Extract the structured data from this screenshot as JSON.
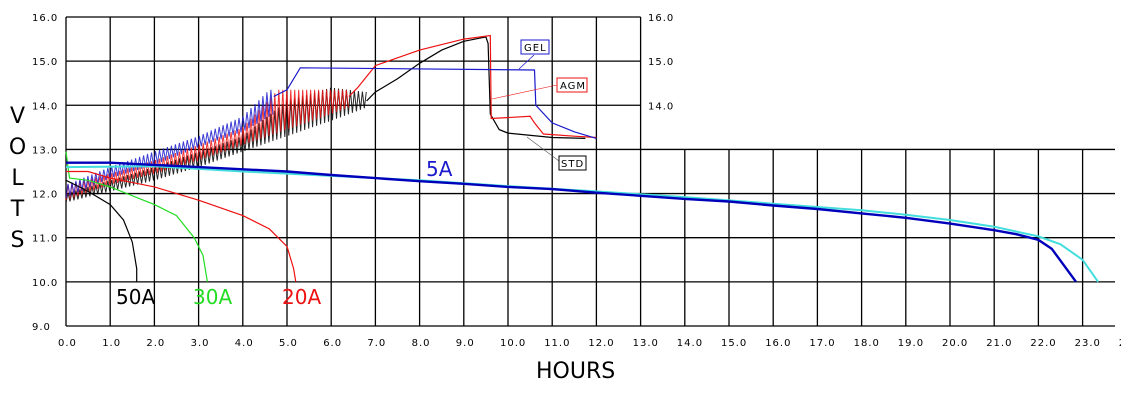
{
  "chart_data": {
    "type": "line",
    "xlabel": "HOURS",
    "ylabel": "VOLTS",
    "xlim": [
      0,
      24
    ],
    "ylim": [
      9,
      16
    ],
    "grid": true,
    "x_ticks": [
      "0.0",
      "1.0",
      "2.0",
      "3.0",
      "4.0",
      "5.0",
      "6.0",
      "7.0",
      "8.0",
      "9.0",
      "10.0",
      "11.0",
      "12.0",
      "13.0",
      "14.0",
      "15.0",
      "16.0",
      "17.0",
      "18.0",
      "19.0",
      "20.0",
      "21.0",
      "22.0",
      "23.0",
      "2"
    ],
    "y_ticks": [
      "16.0",
      "15.0",
      "14.0",
      "13.0",
      "12.0",
      "11.0",
      "10.0",
      "9.0"
    ],
    "y_ticks_right": [
      "16.0",
      "15.0",
      "14.0"
    ],
    "colors": {
      "black": "#000000",
      "green": "#22dd22",
      "red": "#ee1111",
      "blue": "#1a1acc",
      "cyan": "#44dddd",
      "navy": "#0000bb"
    },
    "discharge_series": [
      {
        "label": "50A",
        "color": "#000000",
        "points": [
          [
            0,
            12.3
          ],
          [
            0.3,
            12.15
          ],
          [
            0.5,
            12.05
          ],
          [
            1.0,
            11.75
          ],
          [
            1.3,
            11.4
          ],
          [
            1.5,
            10.9
          ],
          [
            1.6,
            10.3
          ],
          [
            1.6,
            10.0
          ]
        ]
      },
      {
        "label": "30A",
        "color": "#22dd22",
        "points": [
          [
            0,
            12.95
          ],
          [
            0.08,
            12.35
          ],
          [
            0.5,
            12.3
          ],
          [
            1,
            12.15
          ],
          [
            2,
            11.75
          ],
          [
            2.5,
            11.5
          ],
          [
            2.9,
            11.0
          ],
          [
            3.1,
            10.6
          ],
          [
            3.2,
            10.0
          ]
        ]
      },
      {
        "label": "20A",
        "color": "#ee1111",
        "points": [
          [
            0,
            12.5
          ],
          [
            0.5,
            12.5
          ],
          [
            1,
            12.35
          ],
          [
            2,
            12.15
          ],
          [
            3,
            11.85
          ],
          [
            4,
            11.5
          ],
          [
            4.6,
            11.2
          ],
          [
            5,
            10.8
          ],
          [
            5.15,
            10.3
          ],
          [
            5.2,
            10.0
          ]
        ]
      },
      {
        "label": "",
        "color": "#44dddd",
        "points": [
          [
            0,
            12.6
          ],
          [
            2,
            12.62
          ],
          [
            4,
            12.5
          ],
          [
            6,
            12.4
          ],
          [
            8,
            12.3
          ],
          [
            10,
            12.17
          ],
          [
            12,
            12.05
          ],
          [
            14,
            11.92
          ],
          [
            16,
            11.77
          ],
          [
            18,
            11.62
          ],
          [
            19,
            11.52
          ],
          [
            20,
            11.4
          ],
          [
            21,
            11.25
          ],
          [
            22,
            11.03
          ],
          [
            22.5,
            10.85
          ],
          [
            23,
            10.5
          ],
          [
            23.35,
            10.0
          ]
        ]
      },
      {
        "label": "5A",
        "color": "#0000bb",
        "points": [
          [
            0,
            12.7
          ],
          [
            1,
            12.7
          ],
          [
            2,
            12.65
          ],
          [
            3,
            12.6
          ],
          [
            4,
            12.55
          ],
          [
            5,
            12.5
          ],
          [
            6,
            12.42
          ],
          [
            7,
            12.35
          ],
          [
            8,
            12.28
          ],
          [
            9,
            12.22
          ],
          [
            10,
            12.15
          ],
          [
            11,
            12.1
          ],
          [
            12,
            12.02
          ],
          [
            13,
            11.95
          ],
          [
            14,
            11.88
          ],
          [
            15,
            11.82
          ],
          [
            16,
            11.73
          ],
          [
            17,
            11.65
          ],
          [
            18,
            11.55
          ],
          [
            19,
            11.45
          ],
          [
            20,
            11.32
          ],
          [
            21,
            11.17
          ],
          [
            21.5,
            11.08
          ],
          [
            22,
            10.95
          ],
          [
            22.3,
            10.75
          ],
          [
            22.85,
            10.0
          ]
        ]
      }
    ],
    "charge_series": [
      {
        "label": "STD",
        "color": "#000000",
        "ripple_low": [
          [
            0,
            11.8
          ],
          [
            1,
            12.05
          ],
          [
            2,
            12.3
          ],
          [
            3,
            12.6
          ],
          [
            4,
            12.95
          ],
          [
            5,
            13.3
          ],
          [
            6,
            13.65
          ],
          [
            6.8,
            13.95
          ]
        ],
        "ripple_high": [
          [
            0,
            12.0
          ],
          [
            1,
            12.3
          ],
          [
            2,
            12.6
          ],
          [
            3,
            12.95
          ],
          [
            4,
            13.3
          ],
          [
            5,
            14.1
          ],
          [
            6,
            14.4
          ],
          [
            6.8,
            14.3
          ]
        ],
        "points": [
          [
            6.8,
            14.1
          ],
          [
            7,
            14.3
          ],
          [
            7.5,
            14.6
          ],
          [
            8,
            14.95
          ],
          [
            8.5,
            15.25
          ],
          [
            9,
            15.45
          ],
          [
            9.5,
            15.55
          ],
          [
            9.55,
            15.4
          ],
          [
            9.6,
            13.8
          ],
          [
            9.8,
            13.45
          ],
          [
            10,
            13.37
          ],
          [
            11,
            13.27
          ],
          [
            11.75,
            13.25
          ]
        ]
      },
      {
        "label": "AGM",
        "color": "#ee1111",
        "ripple_low": [
          [
            0,
            11.85
          ],
          [
            1,
            12.2
          ],
          [
            2,
            12.45
          ],
          [
            3,
            12.75
          ],
          [
            4,
            13.1
          ],
          [
            5,
            13.45
          ],
          [
            6,
            13.8
          ],
          [
            6.4,
            13.95
          ]
        ],
        "ripple_high": [
          [
            0,
            12.2
          ],
          [
            1,
            12.45
          ],
          [
            2,
            12.75
          ],
          [
            3,
            13.1
          ],
          [
            4,
            13.5
          ],
          [
            4.8,
            14.35
          ],
          [
            6.4,
            14.35
          ]
        ],
        "points": [
          [
            6.4,
            14.2
          ],
          [
            6.6,
            14.4
          ],
          [
            7,
            14.9
          ],
          [
            8,
            15.25
          ],
          [
            9,
            15.5
          ],
          [
            9.6,
            15.58
          ],
          [
            9.62,
            13.7
          ],
          [
            10.5,
            13.75
          ],
          [
            10.6,
            13.6
          ],
          [
            10.8,
            13.35
          ],
          [
            11.5,
            13.3
          ],
          [
            12,
            13.27
          ]
        ]
      },
      {
        "label": "GEL",
        "color": "#1a1acc",
        "ripple_low": [
          [
            0,
            11.9
          ],
          [
            1,
            12.35
          ],
          [
            2,
            12.65
          ],
          [
            3,
            13.05
          ],
          [
            4,
            13.4
          ],
          [
            4.7,
            13.8
          ]
        ],
        "ripple_high": [
          [
            0,
            12.2
          ],
          [
            1,
            12.6
          ],
          [
            2,
            12.95
          ],
          [
            3,
            13.3
          ],
          [
            4,
            13.75
          ],
          [
            4.6,
            14.35
          ],
          [
            4.7,
            14.35
          ]
        ],
        "points": [
          [
            4.7,
            14.2
          ],
          [
            5.0,
            14.35
          ],
          [
            5.3,
            14.85
          ],
          [
            10.6,
            14.8
          ],
          [
            10.63,
            14.0
          ],
          [
            11,
            13.6
          ],
          [
            11.5,
            13.4
          ],
          [
            12,
            13.25
          ]
        ]
      }
    ]
  }
}
